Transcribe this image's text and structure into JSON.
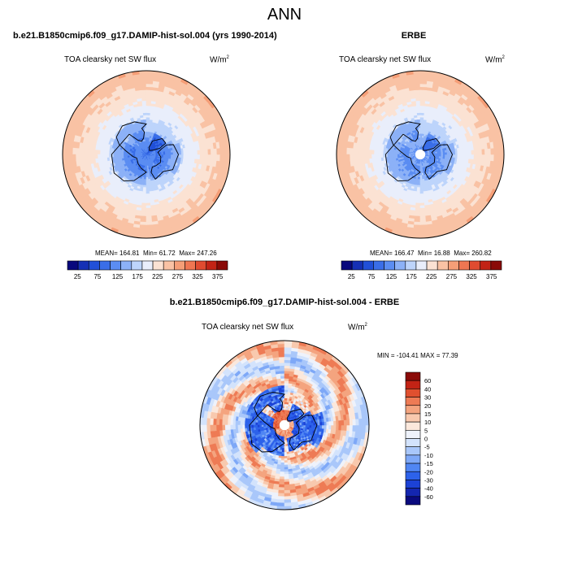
{
  "page": {
    "main_title": "ANN"
  },
  "colors": {
    "abs_levels": [
      "#08087d",
      "#1530b5",
      "#2150d8",
      "#3a6ee8",
      "#5b8df2",
      "#8cb1f7",
      "#bdd4fb",
      "#e9eefb",
      "#fbe2d3",
      "#f9c2a4",
      "#f59e77",
      "#ef7652",
      "#e04b30",
      "#c22316",
      "#8a0a07"
    ],
    "diff_levels": [
      "#0a0a7e",
      "#1426b0",
      "#1c42d6",
      "#2d62ea",
      "#5086f3",
      "#7ea8f7",
      "#a9c7fa",
      "#d3e3fc",
      "#eef2fb",
      "#fbe8dc",
      "#f8c9ae",
      "#f4a47f",
      "#ee7b55",
      "#e0502f",
      "#c32315",
      "#8a0a07"
    ],
    "land_outline": "#000000"
  },
  "chart_data": [
    {
      "type": "heatmap",
      "projection": "north-polar-stereographic",
      "title": "b.e21.B1850cmip6.f09_g17.DAMIP-hist-sol.004 (yrs 1990-2014)",
      "subtitle": "TOA clearsky net SW flux",
      "units_base": "W/m",
      "units_exp": "2",
      "stats": {
        "mean": "MEAN= 164.81",
        "min": "Min=  61.72",
        "max": "Max= 247.26"
      },
      "colorbar": {
        "orientation": "horizontal",
        "tick_labels": [
          "25",
          "75",
          "125",
          "175",
          "225",
          "275",
          "325",
          "375"
        ],
        "range": [
          0,
          400
        ],
        "interval": 25
      },
      "field": {
        "pole_value": 95,
        "lat60_value": 140,
        "equator_value": 245,
        "missing_pole": false
      }
    },
    {
      "type": "heatmap",
      "projection": "north-polar-stereographic",
      "title": "ERBE",
      "subtitle": "TOA clearsky net SW flux",
      "units_base": "W/m",
      "units_exp": "2",
      "stats": {
        "mean": "MEAN= 166.47",
        "min": "Min=  16.88",
        "max": "Max= 260.82"
      },
      "colorbar": {
        "orientation": "horizontal",
        "tick_labels": [
          "25",
          "75",
          "125",
          "175",
          "225",
          "275",
          "325",
          "375"
        ],
        "range": [
          0,
          400
        ],
        "interval": 25
      },
      "field": {
        "pole_value": 110,
        "lat60_value": 140,
        "equator_value": 245,
        "missing_pole": true
      }
    },
    {
      "type": "heatmap",
      "projection": "north-polar-stereographic",
      "title": "b.e21.B1850cmip6.f09_g17.DAMIP-hist-sol.004 - ERBE",
      "subtitle": "TOA clearsky net SW flux",
      "units_base": "W/m",
      "units_exp": "2",
      "stats": {
        "minmax": "MIN = -104.41  MAX =   77.39"
      },
      "colorbar": {
        "orientation": "vertical",
        "tick_labels": [
          "60",
          "40",
          "30",
          "20",
          "15",
          "10",
          "5",
          "0",
          "-5",
          "-10",
          "-15",
          "-20",
          "-30",
          "-40",
          "-60"
        ]
      },
      "field": {
        "missing_pole": true,
        "pattern": "blue over continents, red over Arctic ocean and subtropical oceans"
      }
    }
  ]
}
